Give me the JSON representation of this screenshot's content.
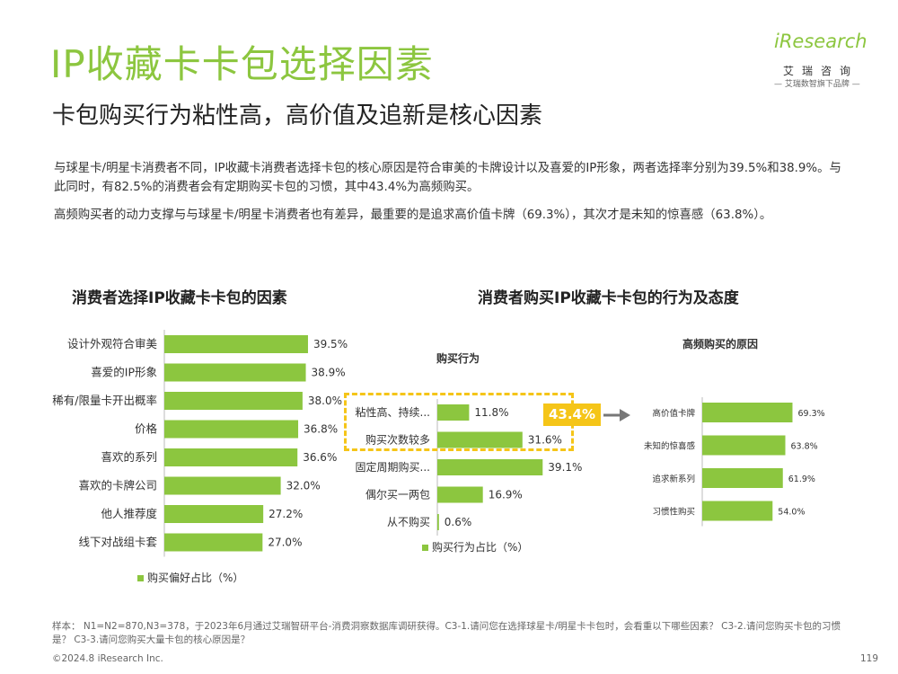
{
  "page": {
    "title": "IP收藏卡卡包选择因素",
    "subtitle": "卡包购买行为粘性高，高价值及追新是核心因素",
    "logo": {
      "brand": "iResearch",
      "cn": "艾瑞咨询",
      "tagline": "— 艾瑞数智旗下品牌 —"
    },
    "paragraph1": "与球星卡/明星卡消费者不同，IP收藏卡消费者选择卡包的核心原因是符合审美的卡牌设计以及喜爱的IP形象，两者选择率分别为39.5%和38.9%。与此同时，有82.5%的消费者会有定期购买卡包的习惯，其中43.4%为高频购买。",
    "paragraph2": "高频购买者的动力支撑与与球星卡/明星卡消费者也有差异，最重要的是追求高价值卡牌（69.3%），其次才是未知的惊喜感（63.8%）。",
    "left_panel_title": "消费者选择IP收藏卡卡包的因素",
    "right_panel_title": "消费者购买IP收藏卡卡包的行为及态度",
    "footnote": "样本： N1=N2=870,N3=378，于2023年6月通过艾瑞智研平台-消费洞察数据库调研获得。C3-1.请问您在选择球星卡/明星卡卡包时，会看重以下哪些因素？ C3-2.请问您购买卡包的习惯是？ C3-3.请问您购买大量卡包的核心原因是？",
    "copyright": "©2024.8 iResearch Inc.",
    "page_number": "119",
    "callout": "43.4%",
    "arrow": "→",
    "colors": {
      "accent": "#8cc63f",
      "highlight": "#f5c518",
      "axis": "#bbbbbb"
    }
  },
  "chart_data": [
    {
      "type": "bar",
      "orientation": "horizontal",
      "title": "消费者选择IP收藏卡卡包的因素",
      "categories": [
        "设计外观符合审美",
        "喜爱的IP形象",
        "稀有/限量卡开出概率",
        "价格",
        "喜欢的系列",
        "喜欢的卡牌公司",
        "他人推荐度",
        "线下对战组卡套"
      ],
      "values": [
        39.5,
        38.9,
        38.0,
        36.8,
        36.6,
        32.0,
        27.2,
        27.0
      ],
      "value_labels": [
        "39.5%",
        "38.9%",
        "38.0%",
        "36.8%",
        "36.6%",
        "32.0%",
        "27.2%",
        "27.0%"
      ],
      "legend": "购买偏好占比（%）",
      "unit": "%"
    },
    {
      "type": "bar",
      "orientation": "horizontal",
      "title": "购买行为",
      "categories": [
        "粘性高、持续...",
        "购买次数较多",
        "固定周期购买...",
        "偶尔买一两包",
        "从不购买"
      ],
      "values": [
        11.8,
        31.6,
        39.1,
        16.9,
        0.6
      ],
      "value_labels": [
        "11.8%",
        "31.6%",
        "39.1%",
        "16.9%",
        "0.6%"
      ],
      "legend": "购买行为占比（%）",
      "unit": "%",
      "highlight": {
        "categories": [
          "粘性高、持续...",
          "购买次数较多"
        ],
        "label": "43.4%"
      }
    },
    {
      "type": "bar",
      "orientation": "horizontal",
      "title": "高频购买的原因",
      "categories": [
        "高价值卡牌",
        "未知的惊喜感",
        "追求新系列",
        "习惯性购买"
      ],
      "values": [
        69.3,
        63.8,
        61.9,
        54.0
      ],
      "value_labels": [
        "69.3%",
        "63.8%",
        "61.9%",
        "54.0%"
      ],
      "unit": "%"
    }
  ]
}
